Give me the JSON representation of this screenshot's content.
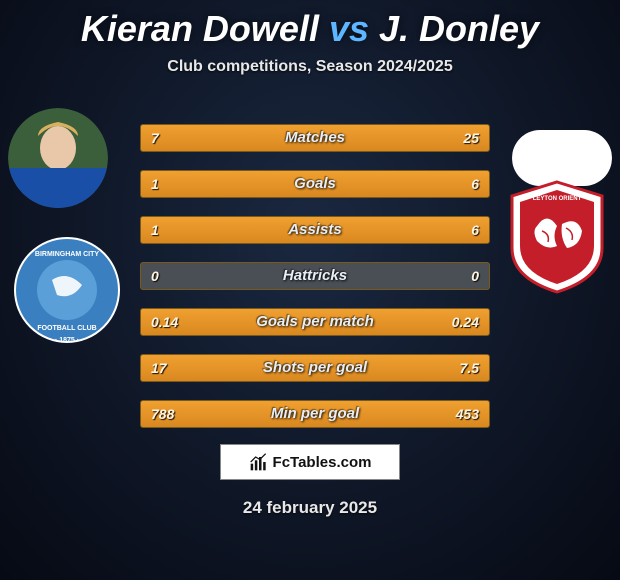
{
  "title": {
    "player1": "Kieran Dowell",
    "vs": "vs",
    "player2": "J. Donley"
  },
  "subtitle": "Club competitions, Season 2024/2025",
  "colors": {
    "accent": "#5db6ff",
    "bar_bg": "#4a4f55",
    "bar_fill": "#e29428",
    "bar_border": "#7a5a1a",
    "text": "#ffffff"
  },
  "chart": {
    "type": "comparison-bars",
    "rows": [
      {
        "label": "Matches",
        "left_val": "7",
        "right_val": "25",
        "left_pct": 22,
        "right_pct": 78
      },
      {
        "label": "Goals",
        "left_val": "1",
        "right_val": "6",
        "left_pct": 14,
        "right_pct": 86
      },
      {
        "label": "Assists",
        "left_val": "1",
        "right_val": "6",
        "left_pct": 14,
        "right_pct": 86
      },
      {
        "label": "Hattricks",
        "left_val": "0",
        "right_val": "0",
        "left_pct": 0,
        "right_pct": 0
      },
      {
        "label": "Goals per match",
        "left_val": "0.14",
        "right_val": "0.24",
        "left_pct": 37,
        "right_pct": 63
      },
      {
        "label": "Shots per goal",
        "left_val": "17",
        "right_val": "7.5",
        "left_pct": 69,
        "right_pct": 31
      },
      {
        "label": "Min per goal",
        "left_val": "788",
        "right_val": "453",
        "left_pct": 64,
        "right_pct": 36
      }
    ]
  },
  "brand": "FcTables.com",
  "date": "24 february 2025",
  "crest_left": {
    "name": "Birmingham City Football Club",
    "year": "1875",
    "primary": "#3a7fbf",
    "secondary": "#ffffff"
  },
  "crest_right": {
    "name": "Leyton Orient",
    "primary": "#c41e2a",
    "secondary": "#ffffff"
  }
}
